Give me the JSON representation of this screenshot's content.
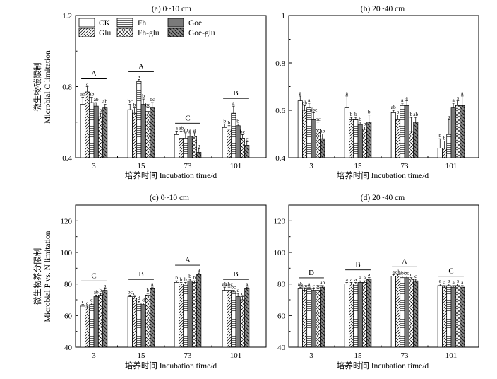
{
  "legend": [
    {
      "name": "CK"
    },
    {
      "name": "Fh"
    },
    {
      "name": "Goe"
    },
    {
      "name": "Glu"
    },
    {
      "name": "Fh-glu"
    },
    {
      "name": "Goe-glu"
    }
  ],
  "chart_data": [
    {
      "type": "bar",
      "title": "(a) 0~10 cm",
      "xlabel": "培养时间 Incubation time/d",
      "ylabel_cn": "微生物碳限制",
      "ylabel": "Microbial C limitation",
      "ylim": [
        0.4,
        1.2
      ],
      "yticks": [
        0.4,
        0.8,
        1.2
      ],
      "categories": [
        "3",
        "15",
        "73",
        "101"
      ],
      "series": [
        {
          "name": "CK",
          "values": [
            0.7,
            0.67,
            0.53,
            0.57
          ]
        },
        {
          "name": "Glu",
          "values": [
            0.77,
            0.65,
            0.51,
            0.56
          ]
        },
        {
          "name": "Fh",
          "values": [
            0.71,
            0.83,
            0.51,
            0.65
          ]
        },
        {
          "name": "Goe",
          "values": [
            0.69,
            0.7,
            0.52,
            0.58
          ]
        },
        {
          "name": "Fh-glu",
          "values": [
            0.63,
            0.66,
            0.52,
            0.51
          ]
        },
        {
          "name": "Goe-glu",
          "values": [
            0.68,
            0.68,
            0.43,
            0.47
          ]
        }
      ],
      "errors": [
        [
          0.04,
          0.03,
          0.02,
          0.02
        ],
        [
          0.03,
          0.03,
          0.04,
          0.02
        ],
        [
          0.03,
          0.01,
          0.03,
          0.04
        ],
        [
          0.02,
          0.03,
          0.02,
          0.01
        ],
        [
          0.02,
          0.02,
          0.02,
          0.02
        ],
        [
          0.02,
          0.03,
          0.02,
          0.02
        ]
      ],
      "letters": [
        [
          "ab",
          "bc",
          "a",
          "b"
        ],
        [
          "a",
          "b",
          "ab",
          "b"
        ],
        [
          "ab",
          "a",
          "ab",
          "a"
        ],
        [
          "ab",
          "b",
          "a",
          "b"
        ],
        [
          "b",
          "bc",
          "a",
          "bc"
        ],
        [
          "ab",
          "bc",
          "b",
          "c"
        ]
      ],
      "groups": [
        "A",
        "A",
        "C",
        "B"
      ]
    },
    {
      "type": "bar",
      "title": "(b) 20~40 cm",
      "xlabel": "培养时间 Incubation time/d",
      "ylim": [
        0.4,
        1.0
      ],
      "yticks": [
        0.4,
        0.6,
        0.8,
        1.0
      ],
      "categories": [
        "3",
        "15",
        "73",
        "101"
      ],
      "series": [
        {
          "name": "CK",
          "values": [
            0.64,
            0.61,
            0.59,
            0.44
          ]
        },
        {
          "name": "Glu",
          "values": [
            0.6,
            0.56,
            0.56,
            0.44
          ]
        },
        {
          "name": "Fh",
          "values": [
            0.61,
            0.56,
            0.62,
            0.5
          ]
        },
        {
          "name": "Goe",
          "values": [
            0.56,
            0.54,
            0.62,
            0.61
          ]
        },
        {
          "name": "Fh-glu",
          "values": [
            0.52,
            0.52,
            0.51,
            0.62
          ]
        },
        {
          "name": "Goe-glu",
          "values": [
            0.48,
            0.55,
            0.55,
            0.62
          ]
        }
      ],
      "errors": [
        [
          0.02,
          0.05,
          0.01,
          0.04
        ],
        [
          0.02,
          0.01,
          0.02,
          0.03
        ],
        [
          0.02,
          0.01,
          0.01,
          0.06
        ],
        [
          0.03,
          0.01,
          0.02,
          0.02
        ],
        [
          0.03,
          0.01,
          0.06,
          0.02
        ],
        [
          0.02,
          0.03,
          0.02,
          0.04
        ]
      ],
      "letters": [
        [
          "a",
          "a",
          "ab",
          "b"
        ],
        [
          "ab",
          "b",
          "a",
          "b"
        ],
        [
          "a",
          "b",
          "a",
          "a"
        ],
        [
          "abc",
          "b",
          "a",
          "a"
        ],
        [
          "bc",
          "b",
          "b",
          "a"
        ],
        [
          "ab",
          "b",
          "ab",
          "a"
        ]
      ],
      "groups": []
    },
    {
      "type": "bar",
      "title": "(c) 0~10 cm",
      "xlabel": "培养时间 Incubation time/d",
      "ylabel_cn": "微生物养分限制",
      "ylabel": "Microbial P vs. N limitation",
      "ylim": [
        40,
        130
      ],
      "yticks": [
        40,
        60,
        80,
        100,
        120
      ],
      "categories": [
        "3",
        "15",
        "73",
        "101"
      ],
      "series": [
        {
          "name": "CK",
          "values": [
            66,
            72,
            81,
            76
          ]
        },
        {
          "name": "Glu",
          "values": [
            65,
            71,
            80,
            76
          ]
        },
        {
          "name": "Fh",
          "values": [
            67,
            68,
            80,
            75
          ]
        },
        {
          "name": "Goe",
          "values": [
            72,
            67,
            82,
            72
          ]
        },
        {
          "name": "Fh-glu",
          "values": [
            73,
            73,
            81,
            70
          ]
        },
        {
          "name": "Goe-glu",
          "values": [
            76,
            77,
            86,
            77
          ]
        }
      ],
      "errors": [
        [
          1,
          1,
          1,
          2
        ],
        [
          1,
          1,
          1,
          2
        ],
        [
          1,
          1,
          1,
          1
        ],
        [
          1,
          1,
          1,
          2
        ],
        [
          1,
          1,
          1,
          2
        ],
        [
          1,
          1,
          1,
          1
        ]
      ],
      "letters": [
        [
          "c",
          "bc",
          "b",
          "ab"
        ],
        [
          "c",
          "c",
          "b",
          "abc"
        ],
        [
          "c",
          "d",
          "b",
          "bc"
        ],
        [
          "ab",
          "d",
          "b",
          "c"
        ],
        [
          "b",
          "b",
          "b",
          "c"
        ],
        [
          "a",
          "a",
          "a",
          "a"
        ]
      ],
      "groups": [
        "C",
        "B",
        "A",
        "B"
      ]
    },
    {
      "type": "bar",
      "title": "(d) 20~40 cm",
      "xlabel": "培养时间 Incubation time/d",
      "ylim": [
        40,
        130
      ],
      "yticks": [
        40,
        60,
        80,
        100,
        120
      ],
      "categories": [
        "3",
        "15",
        "73",
        "101"
      ],
      "series": [
        {
          "name": "CK",
          "values": [
            77,
            80,
            85,
            79
          ]
        },
        {
          "name": "Glu",
          "values": [
            76,
            80,
            85,
            78
          ]
        },
        {
          "name": "Fh",
          "values": [
            77,
            80,
            84,
            79
          ]
        },
        {
          "name": "Goe",
          "values": [
            76,
            81,
            84,
            78
          ]
        },
        {
          "name": "Fh-glu",
          "values": [
            76,
            81,
            83,
            79
          ]
        },
        {
          "name": "Goe-glu",
          "values": [
            78,
            83,
            82,
            78
          ]
        }
      ],
      "errors": [
        [
          1,
          1,
          1,
          1
        ],
        [
          1,
          1,
          1,
          1
        ],
        [
          1,
          1,
          1,
          1
        ],
        [
          1,
          1,
          1,
          1
        ],
        [
          1,
          1,
          1,
          1
        ],
        [
          1,
          1,
          1,
          1
        ]
      ],
      "letters": [
        [
          "ab",
          "a",
          "a",
          "a"
        ],
        [
          "abc",
          "a",
          "ab",
          "a"
        ],
        [
          "a",
          "a",
          "abc",
          "a"
        ],
        [
          "c",
          "a",
          "bc",
          "a"
        ],
        [
          "bc",
          "a",
          "c",
          "a"
        ],
        [
          "ab",
          "a",
          "c",
          "a"
        ]
      ],
      "groups": [
        "D",
        "B",
        "A",
        "C"
      ]
    }
  ]
}
